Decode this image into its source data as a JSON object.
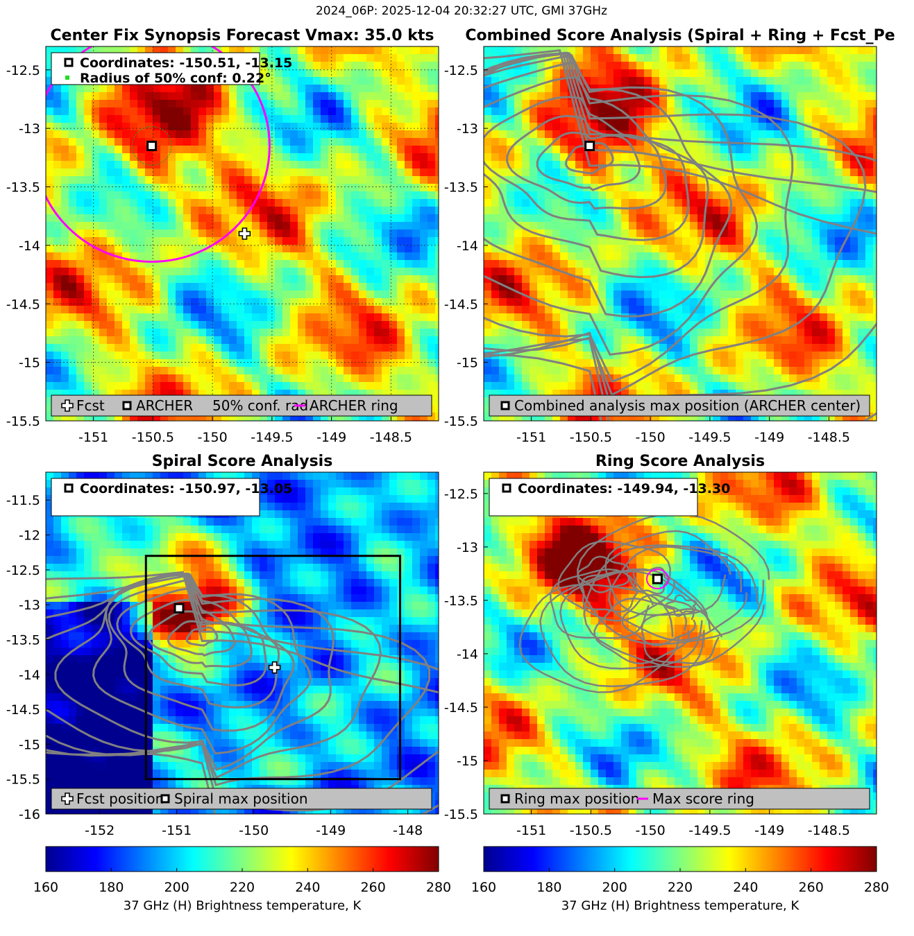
{
  "figure_title": "2024_06P: 2025-12-04 20:32:27 UTC, GMI 37GHz",
  "colormap": {
    "name": "jet",
    "stops": [
      "#00008f",
      "#0000ff",
      "#0080ff",
      "#00ffff",
      "#80ff80",
      "#ffff00",
      "#ff8000",
      "#ff0000",
      "#800000"
    ]
  },
  "chart_data": [
    {
      "type": "heatmap",
      "title": "Center Fix Synopsis     Forecast Vmax: 35.0 kts",
      "xlim": [
        -151.4,
        -148.1
      ],
      "ylim": [
        -15.5,
        -12.3
      ],
      "xticks": [
        -151,
        -150.5,
        -150,
        -149.5,
        -149,
        -148.5
      ],
      "xtick_labels": [
        "-151",
        "-150.5",
        "-150",
        "-149.5",
        "-149",
        "-148.5"
      ],
      "yticks": [
        -12.5,
        -13,
        -13.5,
        -14,
        -14.5,
        -15,
        -15.5
      ],
      "ytick_labels": [
        "-12.5",
        "-13",
        "-13.5",
        "-14",
        "-14.5",
        "-15",
        "-15.5"
      ],
      "grid": true,
      "info_lines": [
        "Coordinates: -150.51, -13.15",
        "Radius of 50% conf: 0.22°"
      ],
      "legend": [
        {
          "symbol": "plus",
          "label": "Fcst"
        },
        {
          "symbol": "square",
          "label": "ARCHER"
        },
        {
          "symbol": "none",
          "label": "50% conf. rad."
        },
        {
          "symbol": "magenta-line",
          "label": "ARCHER ring"
        }
      ],
      "center": [
        -150.51,
        -13.15
      ],
      "fcst_position": [
        -149.73,
        -13.9
      ],
      "conf_radius_deg": 0.22,
      "archer_ring_radius_deg": 0.99
    },
    {
      "type": "heatmap",
      "title": "Combined Score Analysis (Spiral + Ring + Fcst_Pe",
      "xlim": [
        -151.4,
        -148.1
      ],
      "ylim": [
        -15.5,
        -12.3
      ],
      "xticks": [
        -151,
        -150.5,
        -150,
        -149.5,
        -149,
        -148.5
      ],
      "xtick_labels": [
        "-151",
        "-150.5",
        "-150",
        "-149.5",
        "-149",
        "-148.5"
      ],
      "yticks": [
        -12.5,
        -13,
        -13.5,
        -14,
        -14.5,
        -15,
        -15.5
      ],
      "ytick_labels": [
        "-12.5",
        "-13",
        "-13.5",
        "-14",
        "-14.5",
        "-15",
        "-15.5"
      ],
      "grid": false,
      "legend": [
        {
          "symbol": "square",
          "label": "Combined analysis max position (ARCHER center)"
        }
      ],
      "center": [
        -150.51,
        -13.15
      ],
      "contour_levels": 12
    },
    {
      "type": "heatmap",
      "title": "Spiral Score Analysis",
      "xlim": [
        -152.7,
        -147.6
      ],
      "ylim": [
        -16,
        -11.1
      ],
      "xticks": [
        -152,
        -151,
        -150,
        -149,
        -148
      ],
      "xtick_labels": [
        "-152",
        "-151",
        "-150",
        "-149",
        "-148"
      ],
      "yticks": [
        -11.5,
        -12,
        -12.5,
        -13,
        -13.5,
        -14,
        -14.5,
        -15,
        -15.5,
        -16
      ],
      "ytick_labels": [
        "-11.5",
        "-12",
        "-12.5",
        "-13",
        "-13.5",
        "-14",
        "-14.5",
        "-15",
        "-15.5",
        "-16"
      ],
      "grid": false,
      "info_lines": [
        "Coordinates: -150.97, -13.05"
      ],
      "legend": [
        {
          "symbol": "plus",
          "label": "Fcst position"
        },
        {
          "symbol": "square",
          "label": "Spiral max position"
        }
      ],
      "center": [
        -150.97,
        -13.05
      ],
      "fcst_position": [
        -149.73,
        -13.9
      ],
      "analysis_box": {
        "x": [
          -151.4,
          -148.1
        ],
        "y": [
          -15.5,
          -12.3
        ]
      },
      "contour_levels": 12
    },
    {
      "type": "heatmap",
      "title": "Ring Score Analysis",
      "xlim": [
        -151.4,
        -148.1
      ],
      "ylim": [
        -15.5,
        -12.3
      ],
      "xticks": [
        -151,
        -150.5,
        -150,
        -149.5,
        -149,
        -148.5
      ],
      "xtick_labels": [
        "-151",
        "-150.5",
        "-150",
        "-149.5",
        "-149",
        "-148.5"
      ],
      "yticks": [
        -12.5,
        -13,
        -13.5,
        -14,
        -14.5,
        -15,
        -15.5
      ],
      "ytick_labels": [
        "-12.5",
        "-13",
        "-13.5",
        "-14",
        "-14.5",
        "-15",
        "-15.5"
      ],
      "grid": false,
      "info_lines": [
        "Coordinates: -149.94, -13.30"
      ],
      "legend": [
        {
          "symbol": "square",
          "label": "Ring max position"
        },
        {
          "symbol": "magenta-line",
          "label": "Max score ring"
        }
      ],
      "center": [
        -149.94,
        -13.3
      ],
      "max_ring_radius_deg": 0.09
    }
  ],
  "colorbars": [
    {
      "label": "37 GHz (H) Brightness temperature, K",
      "min": 160,
      "max": 280,
      "ticks": [
        160,
        180,
        200,
        220,
        240,
        260,
        280
      ],
      "tick_labels": [
        "160",
        "180",
        "200",
        "220",
        "240",
        "260",
        "280"
      ]
    },
    {
      "label": "37 GHz (H) Brightness temperature, K",
      "min": 160,
      "max": 280,
      "ticks": [
        160,
        180,
        200,
        220,
        240,
        260,
        280
      ],
      "tick_labels": [
        "160",
        "180",
        "200",
        "220",
        "240",
        "260",
        "280"
      ]
    }
  ]
}
